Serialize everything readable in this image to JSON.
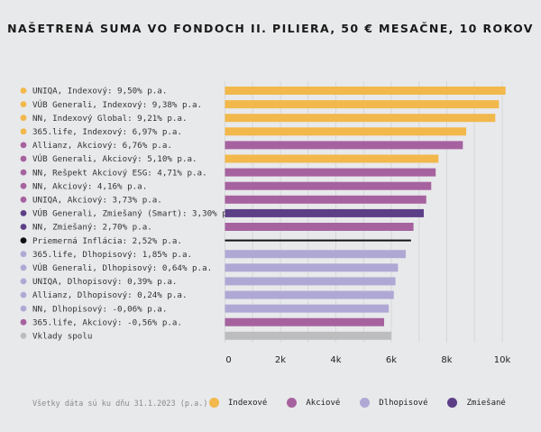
{
  "chart_data": {
    "type": "bar",
    "orientation": "horizontal",
    "title": "NAŠETRENÁ SUMA VO FONDOCH II. PILIERA, 50 € MESAČNE, 10 ROKOV",
    "xlabel": "",
    "ylabel": "",
    "xlim": [
      0,
      10000
    ],
    "x_ticks": [
      0,
      2000,
      4000,
      6000,
      8000,
      10000
    ],
    "x_tick_labels": [
      "0",
      "2k",
      "4k",
      "6k",
      "8k",
      "10k"
    ],
    "minor_gridlines_every": 1000,
    "grid": true,
    "legend_position": "bottom",
    "categories": [
      "UNIQA, Indexový: 9,50% p.a.",
      "VÚB Generali, Indexový: 9,38% p.a.",
      "NN, Indexový Global: 9,21% p.a.",
      "365.life, Indexový: 6,97% p.a.",
      "Allianz, Akciový: 6,76% p.a.",
      "VÚB Generali, Akciový: 5,10% p.a.",
      "NN, Rešpekt Akciový ESG: 4,71% p.a.",
      "NN, Akciový: 4,16% p.a.",
      "UNIQA, Akciový: 3,73% p.a.",
      "VÚB Generali, Zmiešaný (Smart): 3,30% p.a.",
      "NN, Zmiešaný: 2,70% p.a.",
      "Priemerná Inflácia: 2,52% p.a.",
      "365.life, Dlhopisový: 1,85% p.a.",
      "VÚB Generali, Dlhopisový: 0,64% p.a.",
      "UNIQA, Dlhopisový: 0,39% p.a.",
      "Allianz, Dlhopisový: 0,24% p.a.",
      "NN, Dlhopisový: -0,06% p.a.",
      "365.life, Akciový: -0,56% p.a.",
      "Vklady spolu"
    ],
    "values": [
      10120,
      9880,
      9750,
      8700,
      8580,
      7700,
      7600,
      7440,
      7260,
      7170,
      6800,
      6710,
      6520,
      6240,
      6150,
      6090,
      5910,
      5740,
      6000
    ],
    "dot_colors": [
      "indexove",
      "indexove",
      "indexove",
      "indexove",
      "akciove",
      "akciove",
      "akciove",
      "akciove",
      "akciove",
      "zmiesane",
      "zmiesane",
      "inflacia",
      "dlhopisove",
      "dlhopisove",
      "dlhopisove",
      "dlhopisove",
      "dlhopisove",
      "akciove",
      "vklady"
    ],
    "bar_colors": [
      "indexove",
      "indexove",
      "indexove",
      "indexove",
      "akciove",
      "indexove",
      "akciove",
      "akciove",
      "akciove",
      "zmiesane",
      "akciove",
      "inflacia",
      "dlhopisove",
      "dlhopisove",
      "dlhopisove",
      "dlhopisove",
      "dlhopisove",
      "akciove",
      "vklady"
    ],
    "palette": {
      "indexove": "#f2b84b",
      "akciove": "#a6629f",
      "dlhopisove": "#b0a8d4",
      "zmiesane": "#5c3f86",
      "inflacia": "#111111",
      "vklady": "#bdbdbd"
    },
    "legend": [
      {
        "label": "Indexové",
        "key": "indexove"
      },
      {
        "label": "Akciové",
        "key": "akciove"
      },
      {
        "label": "Dlhopisové",
        "key": "dlhopisove"
      },
      {
        "label": "Zmiešané",
        "key": "zmiesane"
      }
    ],
    "footnote": "Všetky dáta sú ku dňu 31.1.2023 (p.a.)"
  }
}
